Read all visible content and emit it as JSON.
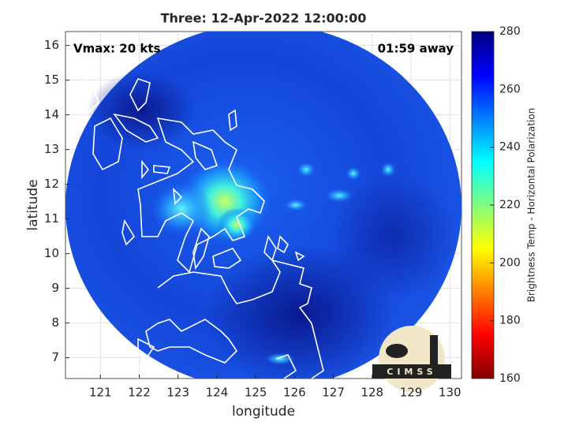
{
  "chart_data": {
    "type": "map",
    "title": "Three: 12-Apr-2022 12:00:00",
    "annotations": [
      "Vmax: 20 kts",
      "01:59 away"
    ],
    "x_label": "longitude",
    "y_label": "latitude",
    "xlim": [
      120.1,
      130.3
    ],
    "ylim": [
      6.4,
      16.4
    ],
    "xticks": [
      121,
      122,
      123,
      124,
      125,
      126,
      127,
      128,
      129,
      130
    ],
    "yticks": [
      7,
      8,
      9,
      10,
      11,
      12,
      13,
      14,
      15,
      16
    ],
    "grid": true,
    "colorbar": {
      "label": "Brightness Temp - Horizontal Polarization",
      "lim": [
        160,
        280
      ],
      "ticks": [
        160,
        180,
        200,
        220,
        240,
        260,
        280
      ],
      "colormap": "jet"
    },
    "logo": "CIMSS"
  }
}
